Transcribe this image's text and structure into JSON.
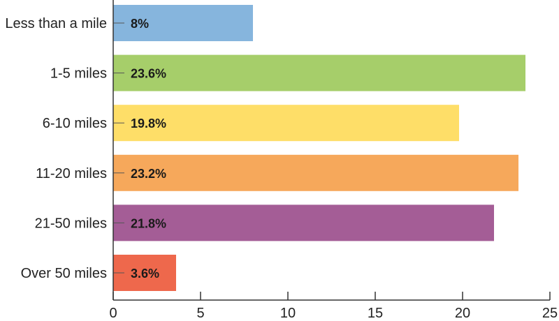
{
  "chart_data": {
    "type": "bar",
    "orientation": "horizontal",
    "categories": [
      "Less than a mile",
      "1-5 miles",
      "6-10 miles",
      "11-20 miles",
      "21-50 miles",
      "Over 50 miles"
    ],
    "values": [
      8,
      23.6,
      19.8,
      23.2,
      21.8,
      3.6
    ],
    "data_labels": [
      "8%",
      "23.6%",
      "19.8%",
      "23.2%",
      "21.8%",
      "3.6%"
    ],
    "colors": [
      "#86b5dd",
      "#a6ce6a",
      "#fede68",
      "#f6a85b",
      "#a45d96",
      "#ee684c"
    ],
    "x_ticks": [
      "0",
      "5",
      "10",
      "15",
      "20",
      "25"
    ],
    "xlim": [
      0,
      25
    ],
    "title": "",
    "xlabel": "",
    "ylabel": "",
    "grid": false,
    "legend": "none"
  }
}
